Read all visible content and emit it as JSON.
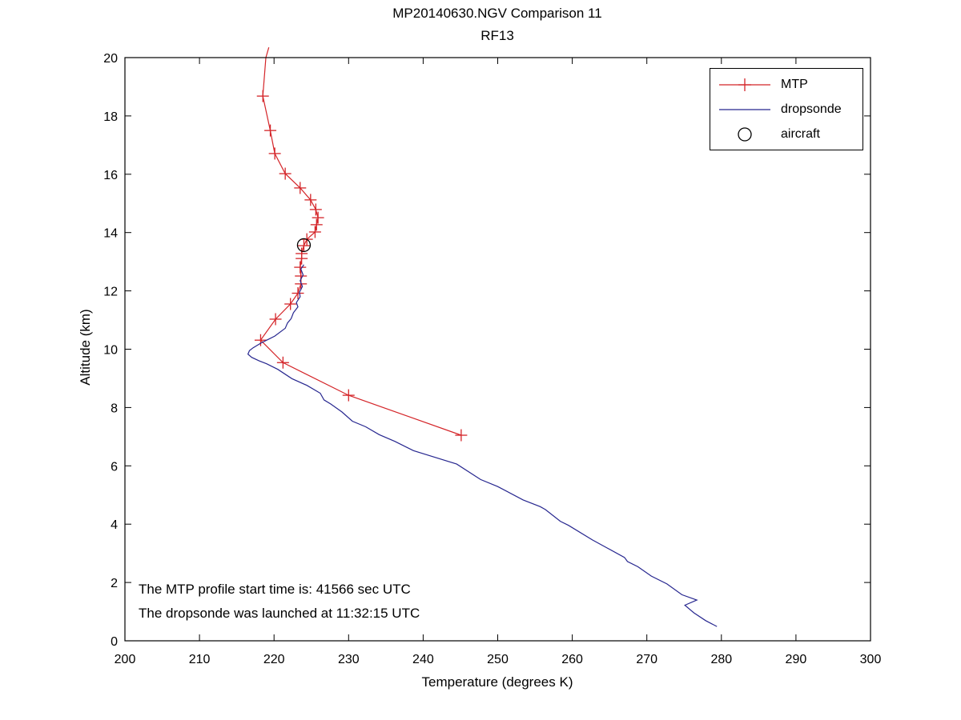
{
  "title": "MP20140630.NGV Comparison 11",
  "subtitle": "RF13",
  "annotations": {
    "line1": "The MTP profile start time is: 41566 sec UTC",
    "line2": "The dropsonde was launched at 11:32:15 UTC"
  },
  "colors": {
    "mtp": "#d42428",
    "dropsonde": "#26268f",
    "aircraft": "#000000",
    "axis": "#000000",
    "background": "#ffffff"
  },
  "chart_data": {
    "type": "line",
    "title": "MP20140630.NGV Comparison 11",
    "subtitle": "RF13",
    "xlabel": "Temperature (degrees K)",
    "ylabel": "Altitude (km)",
    "xlim": [
      200,
      300
    ],
    "ylim": [
      0,
      20
    ],
    "xticks": [
      200,
      210,
      220,
      230,
      240,
      250,
      260,
      270,
      280,
      290,
      300
    ],
    "yticks": [
      0,
      2,
      4,
      6,
      8,
      10,
      12,
      14,
      16,
      18,
      20
    ],
    "grid": false,
    "legend_position": "top-right",
    "series": [
      {
        "name": "MTP",
        "color": "#d42428",
        "marker": "plus",
        "points": [
          [
            219.3,
            20.35
          ],
          [
            218.9,
            20.0
          ],
          [
            218.5,
            18.68
          ],
          [
            219.5,
            17.5
          ],
          [
            220.1,
            16.71
          ],
          [
            221.5,
            16.02
          ],
          [
            223.5,
            15.53
          ],
          [
            224.9,
            15.12
          ],
          [
            225.6,
            14.79
          ],
          [
            225.9,
            14.51
          ],
          [
            225.7,
            14.27
          ],
          [
            225.5,
            14.02
          ],
          [
            224.4,
            13.77
          ],
          [
            224.0,
            13.55
          ],
          [
            223.7,
            13.28
          ],
          [
            223.7,
            13.11
          ],
          [
            223.5,
            12.81
          ],
          [
            223.6,
            12.51
          ],
          [
            223.6,
            12.24
          ],
          [
            223.2,
            11.92
          ],
          [
            222.2,
            11.55
          ],
          [
            220.2,
            11.03
          ],
          [
            218.2,
            10.31
          ],
          [
            221.2,
            9.54
          ],
          [
            230.0,
            8.42
          ],
          [
            245.1,
            7.05
          ]
        ],
        "marker_points": [
          [
            218.5,
            18.68
          ],
          [
            219.5,
            17.5
          ],
          [
            220.1,
            16.71
          ],
          [
            221.5,
            16.02
          ],
          [
            223.5,
            15.53
          ],
          [
            224.9,
            15.12
          ],
          [
            225.6,
            14.79
          ],
          [
            225.9,
            14.51
          ],
          [
            225.7,
            14.27
          ],
          [
            225.5,
            14.02
          ],
          [
            224.4,
            13.77
          ],
          [
            224.0,
            13.55
          ],
          [
            223.7,
            13.28
          ],
          [
            223.7,
            13.11
          ],
          [
            223.5,
            12.81
          ],
          [
            223.6,
            12.51
          ],
          [
            223.6,
            12.24
          ],
          [
            223.2,
            11.92
          ],
          [
            222.2,
            11.55
          ],
          [
            220.2,
            11.03
          ],
          [
            218.2,
            10.31
          ],
          [
            221.2,
            9.54
          ],
          [
            230.0,
            8.42
          ],
          [
            245.1,
            7.05
          ]
        ]
      },
      {
        "name": "dropsonde",
        "color": "#26268f",
        "marker": "none",
        "points": [
          [
            224.0,
            12.9
          ],
          [
            223.6,
            12.75
          ],
          [
            223.9,
            12.55
          ],
          [
            223.5,
            12.35
          ],
          [
            223.8,
            12.15
          ],
          [
            223.4,
            11.95
          ],
          [
            223.5,
            11.8
          ],
          [
            223.0,
            11.6
          ],
          [
            223.2,
            11.45
          ],
          [
            222.6,
            11.25
          ],
          [
            222.3,
            11.05
          ],
          [
            221.8,
            10.9
          ],
          [
            221.5,
            10.72
          ],
          [
            220.1,
            10.45
          ],
          [
            219.1,
            10.32
          ],
          [
            218.3,
            10.22
          ],
          [
            217.2,
            10.05
          ],
          [
            216.7,
            9.95
          ],
          [
            216.5,
            9.83
          ],
          [
            217.0,
            9.72
          ],
          [
            218.0,
            9.6
          ],
          [
            219.0,
            9.5
          ],
          [
            220.5,
            9.31
          ],
          [
            222.4,
            8.99
          ],
          [
            224.4,
            8.76
          ],
          [
            226.2,
            8.49
          ],
          [
            226.7,
            8.26
          ],
          [
            227.6,
            8.12
          ],
          [
            229.1,
            7.85
          ],
          [
            230.5,
            7.53
          ],
          [
            232.3,
            7.34
          ],
          [
            234.1,
            7.07
          ],
          [
            236.2,
            6.84
          ],
          [
            238.7,
            6.52
          ],
          [
            241.6,
            6.29
          ],
          [
            244.5,
            6.06
          ],
          [
            247.7,
            5.53
          ],
          [
            250.0,
            5.29
          ],
          [
            253.4,
            4.83
          ],
          [
            255.7,
            4.6
          ],
          [
            256.4,
            4.5
          ],
          [
            258.4,
            4.1
          ],
          [
            259.5,
            3.96
          ],
          [
            262.7,
            3.46
          ],
          [
            264.7,
            3.18
          ],
          [
            267.0,
            2.86
          ],
          [
            267.4,
            2.72
          ],
          [
            268.8,
            2.54
          ],
          [
            270.6,
            2.22
          ],
          [
            272.7,
            1.95
          ],
          [
            274.7,
            1.58
          ],
          [
            276.7,
            1.4
          ],
          [
            275.1,
            1.22
          ],
          [
            276.3,
            0.96
          ],
          [
            277.9,
            0.69
          ],
          [
            279.4,
            0.49
          ]
        ]
      },
      {
        "name": "aircraft",
        "color": "#000000",
        "marker": "circle",
        "points": [
          [
            224.0,
            13.57
          ]
        ]
      }
    ]
  }
}
